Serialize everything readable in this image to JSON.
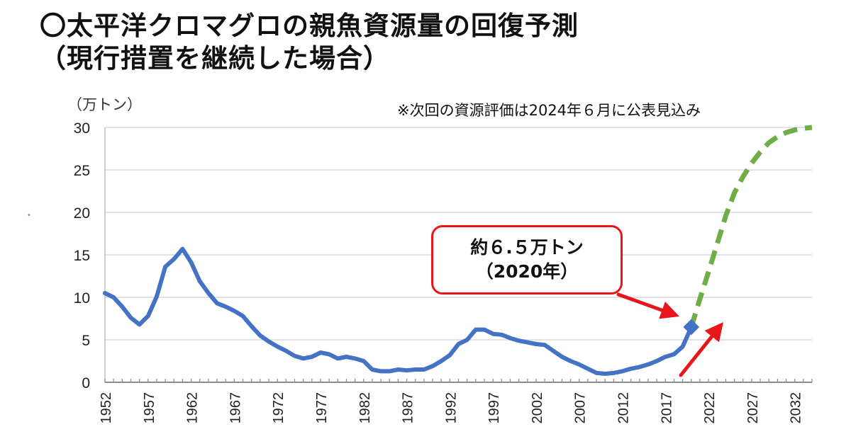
{
  "header": {
    "title_line1": "〇太平洋クロマグロの親魚資源量の回復予測",
    "title_line2": "（現行措置を継続した場合）"
  },
  "unit_label": "（万トン）",
  "note": "※次回の資源評価は2024年６月に公表見込み",
  "callout": {
    "line1": "約６.５万トン",
    "line2": "（2020年）"
  },
  "colors": {
    "history": "#4472c4",
    "projection": "#70ad47",
    "arrow": "#e8161b",
    "grid": "#d9d9d9"
  },
  "chart_data": {
    "type": "line",
    "ylim": [
      0,
      30
    ],
    "yticks": [
      0,
      5,
      10,
      15,
      20,
      25,
      30
    ],
    "xlim": [
      1952,
      2034
    ],
    "xticks": [
      1952,
      1957,
      1962,
      1967,
      1972,
      1977,
      1982,
      1987,
      1992,
      1997,
      2002,
      2007,
      2012,
      2017,
      2022,
      2027,
      2032
    ],
    "series": [
      {
        "style": "solid",
        "x": [
          1952,
          1953,
          1954,
          1955,
          1956,
          1957,
          1958,
          1959,
          1960,
          1961,
          1962,
          1963,
          1964,
          1965,
          1966,
          1967,
          1968,
          1969,
          1970,
          1971,
          1972,
          1973,
          1974,
          1975,
          1976,
          1977,
          1978,
          1979,
          1980,
          1981,
          1982,
          1983,
          1984,
          1985,
          1986,
          1987,
          1988,
          1989,
          1990,
          1991,
          1992,
          1993,
          1994,
          1995,
          1996,
          1997,
          1998,
          1999,
          2000,
          2001,
          2002,
          2003,
          2004,
          2005,
          2006,
          2007,
          2008,
          2009,
          2010,
          2011,
          2012,
          2013,
          2014,
          2015,
          2016,
          2017,
          2018,
          2019,
          2020
        ],
        "values": [
          10.5,
          10,
          8.9,
          7.6,
          6.8,
          7.8,
          10.1,
          13.6,
          14.5,
          15.7,
          14.1,
          11.9,
          10.5,
          9.3,
          8.9,
          8.4,
          7.8,
          6.6,
          5.5,
          4.8,
          4.2,
          3.7,
          3.1,
          2.8,
          3.0,
          3.5,
          3.3,
          2.8,
          3.0,
          2.8,
          2.5,
          1.5,
          1.3,
          1.3,
          1.5,
          1.4,
          1.5,
          1.5,
          1.9,
          2.5,
          3.2,
          4.5,
          5.0,
          6.2,
          6.2,
          5.7,
          5.6,
          5.2,
          4.9,
          4.7,
          4.5,
          4.4,
          3.7,
          3.0,
          2.5,
          2.1,
          1.6,
          1.1,
          1.0,
          1.1,
          1.3,
          1.6,
          1.8,
          2.1,
          2.5,
          3.0,
          3.3,
          4.2,
          6.5
        ]
      },
      {
        "style": "dashed",
        "x": [
          2020,
          2021,
          2022,
          2023,
          2024,
          2025,
          2026,
          2027,
          2028,
          2029,
          2030,
          2031,
          2032,
          2033,
          2034
        ],
        "values": [
          6.5,
          9.8,
          13.0,
          16.3,
          19.6,
          22.3,
          24.2,
          25.8,
          27.1,
          28.2,
          28.9,
          29.4,
          29.7,
          29.9,
          30.0
        ]
      }
    ],
    "grid": true
  }
}
